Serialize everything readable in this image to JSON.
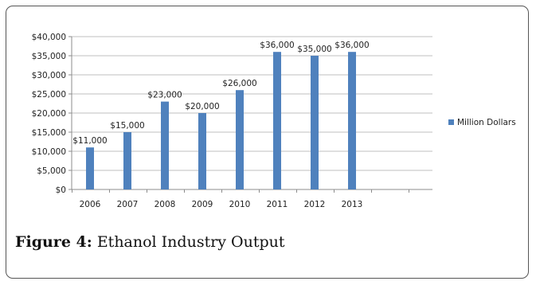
{
  "caption": {
    "label": "Figure 4:",
    "text": "Ethanol Industry Output"
  },
  "chart_data": {
    "type": "bar",
    "categories": [
      "2006",
      "2007",
      "2008",
      "2009",
      "2010",
      "2011",
      "2012",
      "2013"
    ],
    "series": [
      {
        "name": "Million Dollars",
        "values": [
          11000,
          15000,
          23000,
          20000,
          26000,
          36000,
          35000,
          36000
        ]
      }
    ],
    "data_labels": [
      "$11,000",
      "$15,000",
      "$23,000",
      "$20,000",
      "$26,000",
      "$36,000",
      "$35,000",
      "$36,000"
    ],
    "y_ticks": [
      0,
      5000,
      10000,
      15000,
      20000,
      25000,
      30000,
      35000,
      40000
    ],
    "y_tick_labels": [
      "$0",
      "$5,000",
      "$10,000",
      "$15,000",
      "$20,000",
      "$25,000",
      "$30,000",
      "$35,000",
      "$40,000"
    ],
    "ylim": [
      0,
      40000
    ],
    "grid": true,
    "legend": "right",
    "title": "",
    "xlabel": "",
    "ylabel": "",
    "colors": {
      "bar": "#4f81bd",
      "grid": "#bfbfbf",
      "axis": "#8c8c8c"
    }
  }
}
